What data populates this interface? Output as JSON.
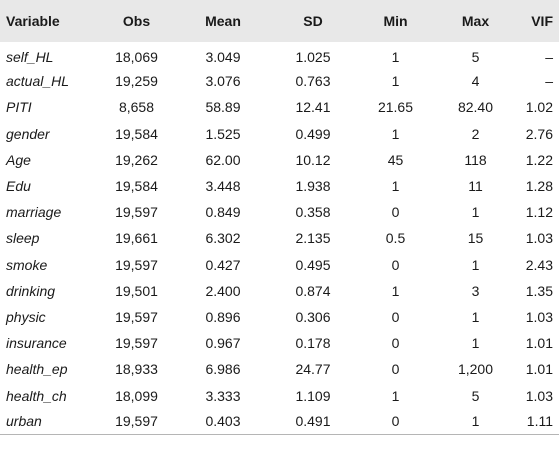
{
  "headers": [
    "Variable",
    "Obs",
    "Mean",
    "SD",
    "Min",
    "Max",
    "VIF"
  ],
  "rows": [
    {
      "variable": "self_HL",
      "obs": "18,069",
      "mean": "3.049",
      "sd": "1.025",
      "min": "1",
      "max": "5",
      "vif": "–"
    },
    {
      "variable": "actual_HL",
      "obs": "19,259",
      "mean": "3.076",
      "sd": "0.763",
      "min": "1",
      "max": "4",
      "vif": "–"
    },
    {
      "variable": "PITI",
      "obs": "8,658",
      "mean": "58.89",
      "sd": "12.41",
      "min": "21.65",
      "max": "82.40",
      "vif": "1.02"
    },
    {
      "variable": "gender",
      "obs": "19,584",
      "mean": "1.525",
      "sd": "0.499",
      "min": "1",
      "max": "2",
      "vif": "2.76"
    },
    {
      "variable": "Age",
      "obs": "19,262",
      "mean": "62.00",
      "sd": "10.12",
      "min": "45",
      "max": "118",
      "vif": "1.22"
    },
    {
      "variable": "Edu",
      "obs": "19,584",
      "mean": "3.448",
      "sd": "1.938",
      "min": "1",
      "max": "11",
      "vif": "1.28"
    },
    {
      "variable": "marriage",
      "obs": "19,597",
      "mean": "0.849",
      "sd": "0.358",
      "min": "0",
      "max": "1",
      "vif": "1.12"
    },
    {
      "variable": "sleep",
      "obs": "19,661",
      "mean": "6.302",
      "sd": "2.135",
      "min": "0.5",
      "max": "15",
      "vif": "1.03"
    },
    {
      "variable": "smoke",
      "obs": "19,597",
      "mean": "0.427",
      "sd": "0.495",
      "min": "0",
      "max": "1",
      "vif": "2.43"
    },
    {
      "variable": "drinking",
      "obs": "19,501",
      "mean": "2.400",
      "sd": "0.874",
      "min": "1",
      "max": "3",
      "vif": "1.35"
    },
    {
      "variable": "physic",
      "obs": "19,597",
      "mean": "0.896",
      "sd": "0.306",
      "min": "0",
      "max": "1",
      "vif": "1.03"
    },
    {
      "variable": "insurance",
      "obs": "19,597",
      "mean": "0.967",
      "sd": "0.178",
      "min": "0",
      "max": "1",
      "vif": "1.01"
    },
    {
      "variable": "health_ep",
      "obs": "18,933",
      "mean": "6.986",
      "sd": "24.77",
      "min": "0",
      "max": "1,200",
      "vif": "1.01"
    },
    {
      "variable": "health_ch",
      "obs": "18,099",
      "mean": "3.333",
      "sd": "1.109",
      "min": "1",
      "max": "5",
      "vif": "1.03"
    },
    {
      "variable": "urban",
      "obs": "19,597",
      "mean": "0.403",
      "sd": "0.491",
      "min": "0",
      "max": "1",
      "vif": "1.11"
    }
  ]
}
